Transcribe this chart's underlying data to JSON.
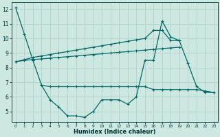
{
  "x": [
    0,
    1,
    2,
    3,
    4,
    5,
    6,
    7,
    8,
    9,
    10,
    11,
    12,
    13,
    14,
    15,
    16,
    17,
    18,
    19,
    20,
    21,
    22,
    23
  ],
  "line_steep": {
    "x": [
      0,
      1,
      2
    ],
    "y": [
      12.1,
      10.3,
      8.5
    ]
  },
  "line_ucurve": {
    "x": [
      2,
      3,
      4,
      5,
      6,
      7,
      8,
      9,
      10,
      11,
      12,
      13,
      14,
      15,
      16,
      17,
      18,
      19,
      20,
      21,
      22,
      23
    ],
    "y": [
      8.5,
      6.8,
      5.8,
      5.3,
      4.7,
      4.7,
      4.6,
      5.0,
      5.8,
      5.8,
      5.8,
      5.5,
      6.0,
      8.5,
      8.5,
      11.2,
      10.1,
      9.85,
      8.3,
      6.7,
      6.3,
      6.3
    ]
  },
  "line_flat": {
    "x": [
      3,
      4,
      5,
      6,
      7,
      8,
      9,
      10,
      11,
      12,
      13,
      14,
      15,
      16,
      17,
      18,
      19,
      20,
      21,
      22,
      23
    ],
    "y": [
      6.8,
      6.7,
      6.7,
      6.7,
      6.7,
      6.7,
      6.7,
      6.7,
      6.7,
      6.7,
      6.7,
      6.7,
      6.7,
      6.5,
      6.5,
      6.5,
      6.5,
      6.5,
      6.5,
      6.4,
      6.3
    ]
  },
  "line_upper": {
    "x": [
      0,
      1,
      2,
      3,
      4,
      5,
      6,
      7,
      8,
      9,
      10,
      11,
      12,
      13,
      14,
      15,
      16,
      17,
      18,
      19
    ],
    "y": [
      8.4,
      8.55,
      8.7,
      8.8,
      8.9,
      9.0,
      9.1,
      9.2,
      9.3,
      9.4,
      9.5,
      9.6,
      9.7,
      9.8,
      9.9,
      10.0,
      10.55,
      10.55,
      9.85,
      9.85
    ]
  },
  "line_lower": {
    "x": [
      0,
      1,
      2,
      3,
      4,
      5,
      6,
      7,
      8,
      9,
      10,
      11,
      12,
      13,
      14,
      15,
      16,
      17,
      18,
      19
    ],
    "y": [
      8.4,
      8.5,
      8.55,
      8.6,
      8.65,
      8.7,
      8.75,
      8.8,
      8.85,
      8.9,
      8.95,
      9.0,
      9.05,
      9.1,
      9.15,
      9.2,
      9.25,
      9.3,
      9.35,
      9.4
    ]
  },
  "bg_color": "#cce8e0",
  "grid_color": "#aacfc8",
  "line_color": "#006666",
  "xlabel": "Humidex (Indice chaleur)",
  "ylim": [
    4.3,
    12.5
  ],
  "xlim": [
    -0.5,
    23.5
  ],
  "yticks": [
    5,
    6,
    7,
    8,
    9,
    10,
    11,
    12
  ],
  "xticks": [
    0,
    1,
    2,
    3,
    4,
    5,
    6,
    7,
    8,
    9,
    10,
    11,
    12,
    13,
    14,
    15,
    16,
    17,
    18,
    19,
    20,
    21,
    22,
    23
  ]
}
